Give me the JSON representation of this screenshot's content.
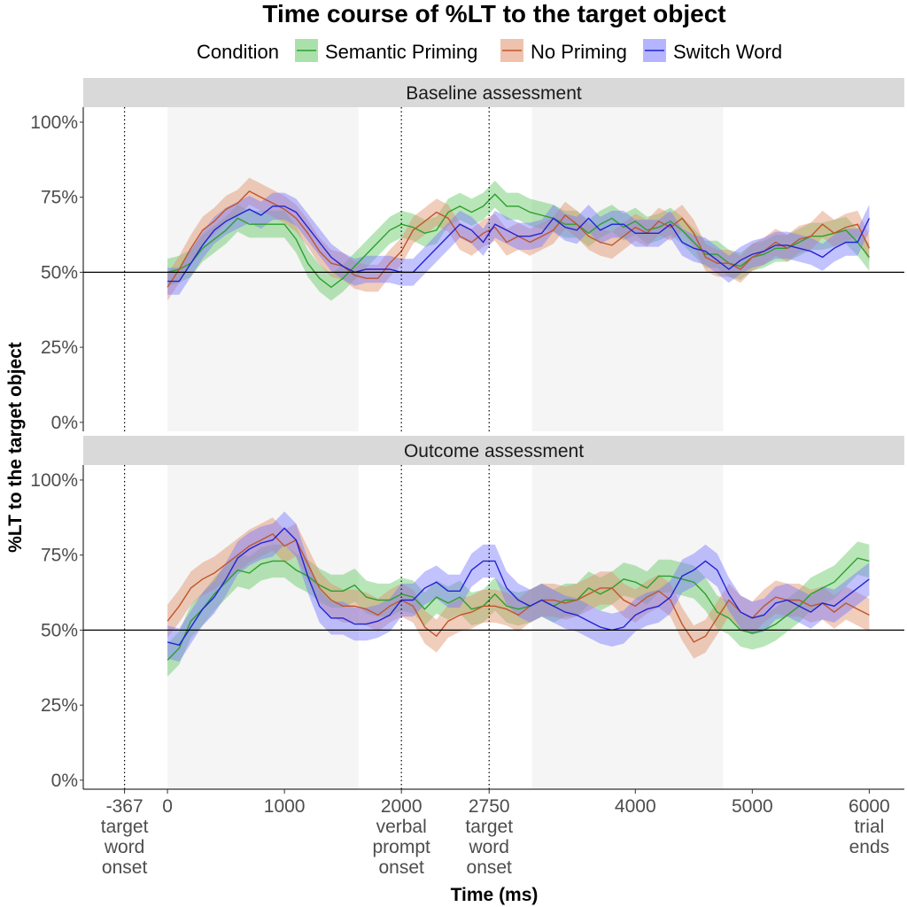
{
  "chart_data": {
    "type": "line",
    "title": "Time course of %LT to the target object",
    "xlabel": "Time (ms)",
    "ylabel": "%LT to the target object",
    "xlim": [
      -720,
      6300
    ],
    "ylim": [
      -3,
      105
    ],
    "legend": {
      "title": "Condition",
      "position": "top",
      "entries": [
        {
          "name": "Semantic Priming",
          "line": "#2ca02c",
          "fill": "#64c864"
        },
        {
          "name": "No Priming",
          "line": "#c0562a",
          "fill": "#e0906a"
        },
        {
          "name": "Switch Word",
          "line": "#2323d2",
          "fill": "#7878ff"
        }
      ]
    },
    "y_ticks": [
      {
        "value": 0,
        "label": "0%"
      },
      {
        "value": 25,
        "label": "25%"
      },
      {
        "value": 50,
        "label": "50%"
      },
      {
        "value": 75,
        "label": "75%"
      },
      {
        "value": 100,
        "label": "100%"
      }
    ],
    "x_ticks": [
      {
        "value": -367,
        "lines": [
          "-367",
          "target",
          "word",
          "onset"
        ]
      },
      {
        "value": 0,
        "lines": [
          "0"
        ]
      },
      {
        "value": 1000,
        "lines": [
          "1000"
        ]
      },
      {
        "value": 2000,
        "lines": [
          "2000",
          "verbal",
          "prompt",
          "onset"
        ]
      },
      {
        "value": 2750,
        "lines": [
          "2750",
          "target",
          "word",
          "onset"
        ]
      },
      {
        "value": 4000,
        "lines": [
          "4000"
        ]
      },
      {
        "value": 5000,
        "lines": [
          "5000"
        ]
      },
      {
        "value": 6000,
        "lines": [
          "6000",
          "trial",
          "ends"
        ]
      }
    ],
    "shaded_windows": [
      [
        0,
        1633
      ],
      [
        3117,
        4750
      ]
    ],
    "dotted_lines": [
      -367,
      2000,
      2750
    ],
    "reference_line": 50,
    "x": [
      0,
      100,
      200,
      300,
      400,
      500,
      600,
      700,
      800,
      900,
      1000,
      1100,
      1200,
      1300,
      1400,
      1500,
      1600,
      1700,
      1800,
      1900,
      2000,
      2100,
      2200,
      2300,
      2400,
      2500,
      2600,
      2700,
      2800,
      2900,
      3000,
      3100,
      3200,
      3300,
      3400,
      3500,
      3600,
      3700,
      3800,
      3900,
      4000,
      4100,
      4200,
      4300,
      4400,
      4500,
      4600,
      4700,
      4800,
      4900,
      5000,
      5100,
      5200,
      5300,
      5400,
      5500,
      5600,
      5700,
      5800,
      5900,
      6000
    ],
    "panels": [
      {
        "label": "Baseline assessment",
        "band": 4.5,
        "series": [
          {
            "name": "Semantic Priming",
            "values": [
              50,
              51,
              53,
              58,
              61,
              64,
              68,
              66,
              66,
              66,
              66,
              61,
              53,
              48,
              45,
              48,
              52,
              56,
              60,
              64,
              66,
              65,
              63,
              64,
              70,
              72,
              70,
              72,
              76,
              72,
              72,
              70,
              69,
              68,
              66,
              66,
              63,
              66,
              68,
              65,
              67,
              64,
              65,
              67,
              64,
              60,
              56,
              56,
              53,
              52,
              55,
              56,
              58,
              58,
              60,
              62,
              62,
              63,
              64,
              60,
              55
            ]
          },
          {
            "name": "No Priming",
            "values": [
              45,
              51,
              58,
              64,
              67,
              71,
              73,
              77,
              75,
              73,
              71,
              68,
              63,
              57,
              53,
              52,
              49,
              48,
              48,
              53,
              57,
              64,
              67,
              70,
              68,
              62,
              60,
              63,
              65,
              60,
              62,
              60,
              62,
              64,
              69,
              66,
              62,
              60,
              59,
              62,
              65,
              63,
              67,
              65,
              68,
              63,
              55,
              53,
              53,
              51,
              55,
              57,
              60,
              58,
              61,
              62,
              66,
              63,
              65,
              66,
              58
            ]
          },
          {
            "name": "Switch Word",
            "values": [
              47,
              47,
              53,
              59,
              64,
              67,
              69,
              71,
              69,
              72,
              72,
              70,
              65,
              60,
              55,
              52,
              50,
              51,
              51,
              51,
              50,
              50,
              54,
              58,
              62,
              66,
              64,
              60,
              66,
              64,
              62,
              62,
              63,
              68,
              65,
              64,
              68,
              64,
              66,
              66,
              63,
              63,
              63,
              66,
              60,
              58,
              57,
              54,
              51,
              54,
              56,
              57,
              59,
              59,
              58,
              57,
              55,
              58,
              60,
              60,
              68
            ]
          }
        ]
      },
      {
        "label": "Outcome assessment",
        "band": 5.5,
        "series": [
          {
            "name": "Semantic Priming",
            "values": [
              40,
              44,
              53,
              57,
              62,
              66,
              70,
              69,
              72,
              73,
              73,
              70,
              68,
              65,
              63,
              63,
              65,
              61,
              60,
              60,
              62,
              61,
              57,
              61,
              59,
              61,
              57,
              58,
              62,
              58,
              57,
              58,
              60,
              58,
              60,
              60,
              64,
              62,
              64,
              67,
              66,
              64,
              68,
              68,
              67,
              66,
              62,
              56,
              54,
              50,
              49,
              50,
              52,
              55,
              58,
              62,
              64,
              66,
              70,
              74,
              73
            ]
          },
          {
            "name": "No Priming",
            "values": [
              53,
              58,
              64,
              67,
              69,
              72,
              75,
              78,
              80,
              82,
              78,
              80,
              72,
              64,
              60,
              58,
              58,
              57,
              55,
              58,
              60,
              58,
              51,
              48,
              53,
              55,
              56,
              58,
              58,
              57,
              55,
              58,
              60,
              60,
              59,
              60,
              62,
              64,
              64,
              60,
              58,
              61,
              63,
              60,
              52,
              46,
              48,
              54,
              60,
              56,
              54,
              58,
              61,
              60,
              60,
              58,
              59,
              56,
              59,
              57,
              55
            ]
          },
          {
            "name": "Switch Word",
            "values": [
              46,
              45,
              51,
              57,
              61,
              67,
              74,
              77,
              79,
              80,
              84,
              80,
              68,
              58,
              54,
              54,
              52,
              52,
              53,
              55,
              60,
              60,
              64,
              66,
              63,
              63,
              70,
              73,
              73,
              64,
              60,
              58,
              60,
              58,
              56,
              55,
              53,
              51,
              50,
              51,
              55,
              57,
              58,
              61,
              68,
              70,
              73,
              70,
              62,
              56,
              54,
              55,
              59,
              60,
              58,
              56,
              59,
              58,
              61,
              64,
              67
            ]
          }
        ]
      }
    ]
  }
}
